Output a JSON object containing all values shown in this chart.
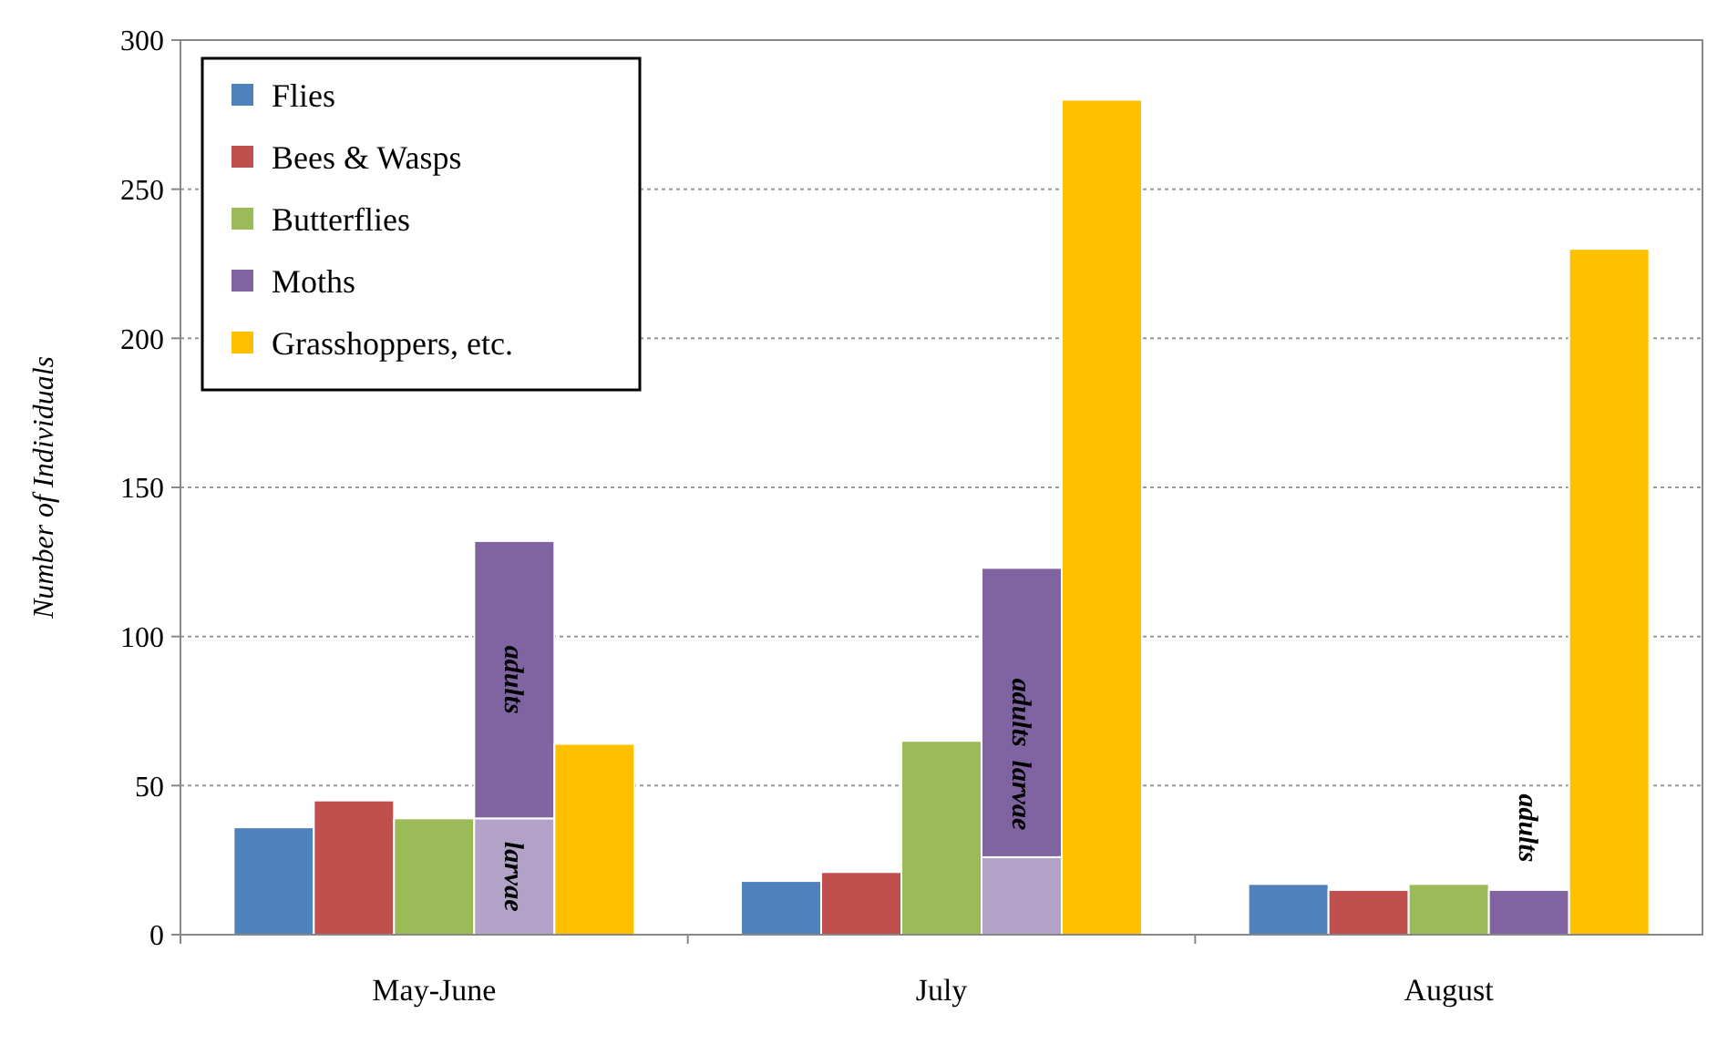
{
  "chart_data": {
    "type": "bar",
    "ylabel": "Number of Individuals",
    "categories": [
      "May-June",
      "July",
      "August"
    ],
    "series": [
      {
        "name": "Flies",
        "color": "#4f81bd",
        "values": [
          36,
          18,
          17
        ]
      },
      {
        "name": "Bees & Wasps",
        "color": "#c0504d",
        "values": [
          45,
          21,
          15
        ]
      },
      {
        "name": "Butterflies",
        "color": "#9bbb59",
        "values": [
          39,
          65,
          17
        ]
      },
      {
        "color": "#b3a2c7",
        "values": [
          39,
          26,
          null
        ],
        "base": [
          0,
          0,
          null
        ]
      },
      {
        "name": "Moths",
        "color": "#8064a2",
        "values": [
          93,
          97,
          15
        ],
        "base": [
          39,
          26,
          0
        ]
      },
      {
        "name": "Grasshoppers, etc.",
        "color": "#ffc000",
        "values": [
          64,
          280,
          230
        ]
      }
    ],
    "ylim": [
      0,
      300
    ],
    "yticks": [
      0,
      50,
      100,
      150,
      200,
      250,
      300
    ],
    "grid": "y",
    "legend": "top left",
    "annotations": [
      "adults",
      "larvae",
      "adults",
      "larvae",
      "adults"
    ]
  }
}
